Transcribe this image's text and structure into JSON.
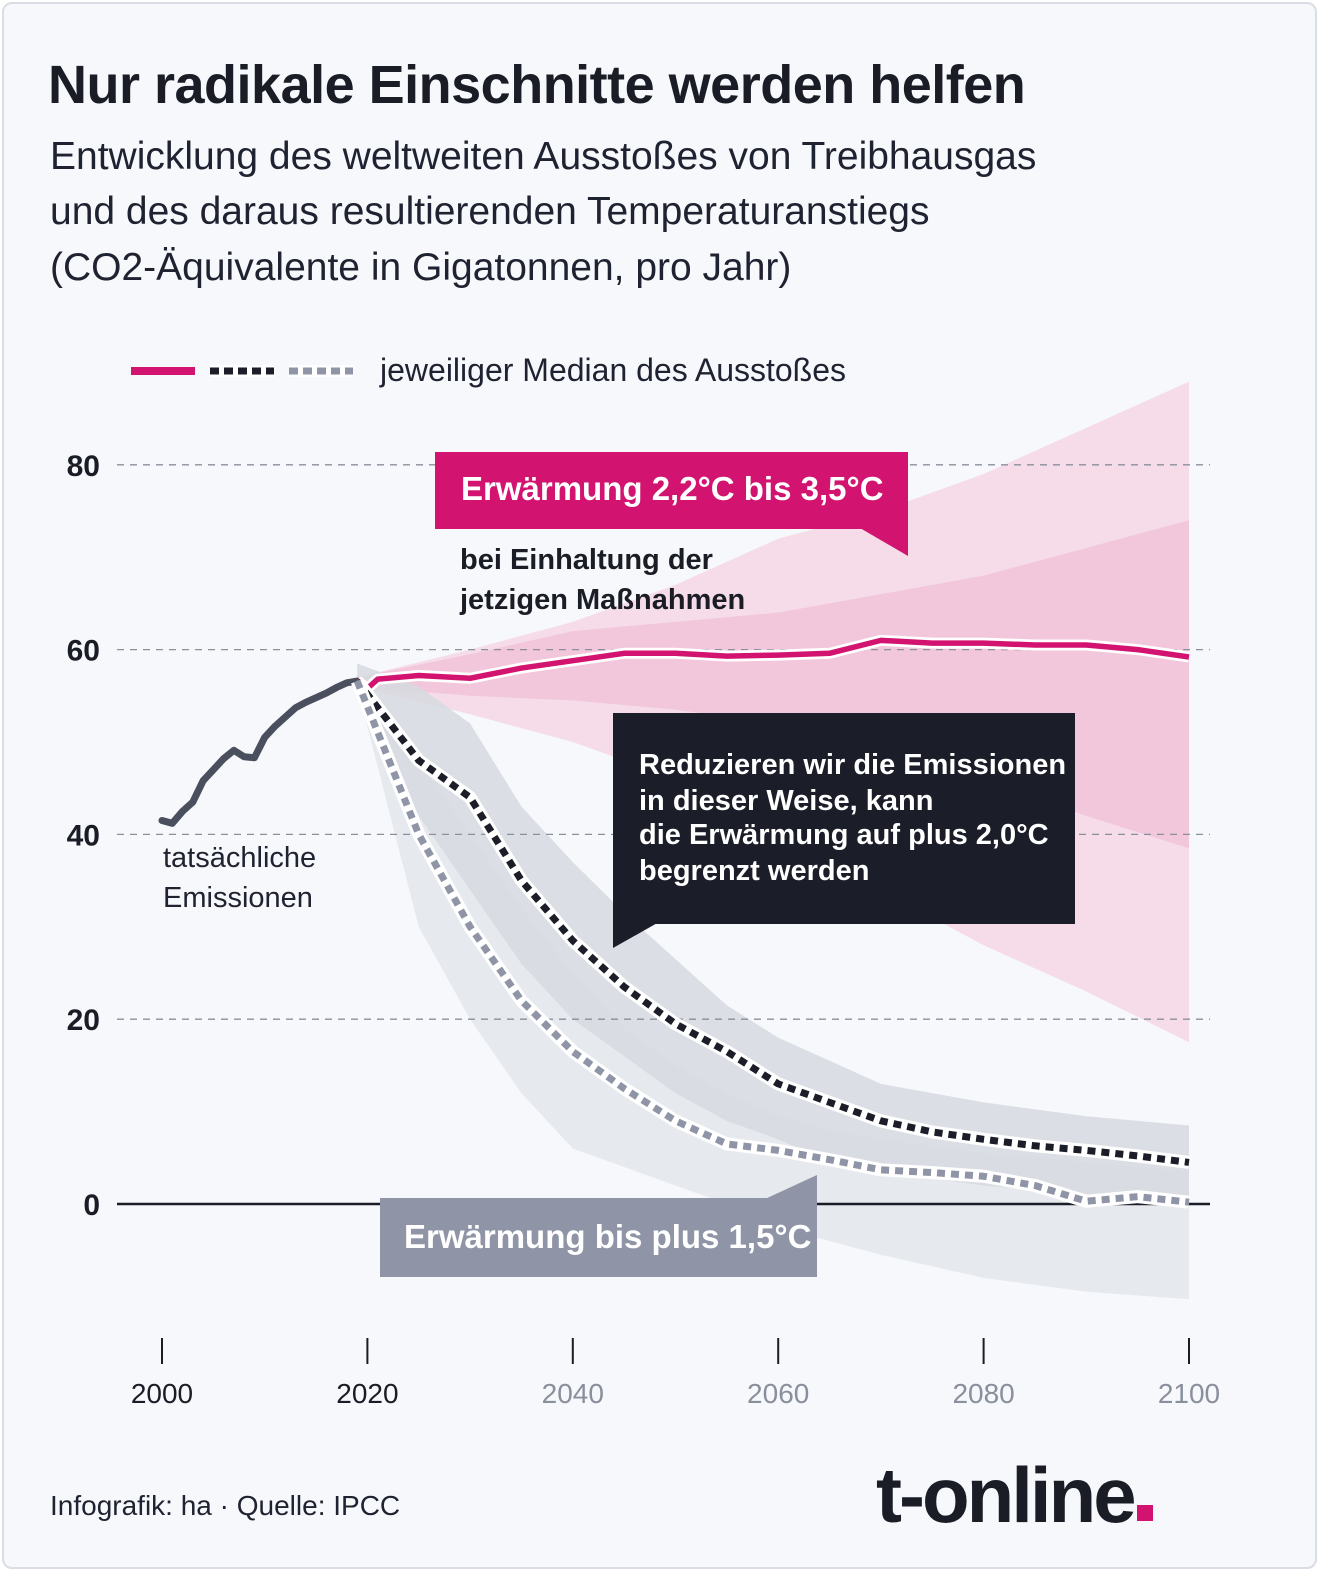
{
  "title": "Nur radikale Einschnitte werden helfen",
  "subtitle_lines": [
    "Entwicklung des weltweiten Ausstoßes von Treibhausgas",
    "und des daraus resultierenden Temperaturanstiegs",
    "(CO2-Äquivalente in Gigatonnen, pro Jahr)"
  ],
  "legend": {
    "text": "jeweiliger Median des Ausstoßes",
    "swatches": [
      "solid-magenta",
      "dotted-black",
      "dotted-grey"
    ]
  },
  "annotations": {
    "pink_box": "Erwärmung 2,2°C bis 3,5°C",
    "pink_note": [
      "bei Einhaltung der",
      "jetzigen Maßnahmen"
    ],
    "dark_box": [
      "Reduzieren wir die Emissionen",
      "in dieser Weise, kann",
      "die Erwärmung auf plus 2,0°C",
      "begrenzt werden"
    ],
    "actual_label": [
      "tatsächliche",
      "Emissionen"
    ],
    "grey_box": "Erwärmung bis plus 1,5°C"
  },
  "footer": "Infografik: ha  ·  Quelle: IPCC",
  "logo": "t-online",
  "colors": {
    "magenta": "#d2136f",
    "dark": "#1b1e28",
    "grey_box": "#8f95a6",
    "actual_line": "#4a4f5e",
    "band_pink_light": "#f5dce8",
    "band_pink": "#f2c6db",
    "band_grey_light": "#e6e9ee",
    "band_grey": "#d6d9df",
    "dots_grey": "#8f95a6"
  },
  "chart_data": {
    "type": "line",
    "x_ticks": [
      2000,
      2020,
      2040,
      2060,
      2080,
      2100
    ],
    "x_ticks_projected": [
      2040,
      2060,
      2080,
      2100
    ],
    "y_ticks": [
      0,
      20,
      40,
      60,
      80
    ],
    "xlim": [
      1995,
      2100
    ],
    "ylim": [
      -10,
      85
    ],
    "grid": "dashed horizontal at 20, 40, 60, 80; solid zero line",
    "series": [
      {
        "style": "actual",
        "x": [
          2000,
          2001,
          2002,
          2003,
          2004,
          2005,
          2006,
          2007,
          2008,
          2009,
          2010,
          2011,
          2012,
          2013,
          2014,
          2015,
          2016,
          2017,
          2018,
          2019
        ],
        "y": [
          41.5,
          41.2,
          42.5,
          43.5,
          45.8,
          47.0,
          48.2,
          49.1,
          48.4,
          48.3,
          50.5,
          51.7,
          52.7,
          53.7,
          54.3,
          54.8,
          55.3,
          55.9,
          56.4,
          56.6
        ]
      },
      {
        "style": "current-policies",
        "x": [
          2019,
          2020,
          2021,
          2025,
          2030,
          2035,
          2040,
          2045,
          2050,
          2055,
          2060,
          2065,
          2070,
          2075,
          2080,
          2085,
          2090,
          2095,
          2100
        ],
        "y": [
          56.6,
          55.8,
          56.8,
          57.2,
          56.9,
          58.0,
          58.8,
          59.6,
          59.6,
          59.3,
          59.4,
          59.6,
          61.0,
          60.7,
          60.7,
          60.5,
          60.5,
          60.0,
          59.2
        ]
      },
      {
        "style": "2.0C",
        "x": [
          2019,
          2025,
          2030,
          2035,
          2040,
          2045,
          2050,
          2055,
          2060,
          2065,
          2070,
          2075,
          2080,
          2085,
          2090,
          2095,
          2100
        ],
        "y": [
          56.6,
          48.0,
          44.0,
          35.0,
          28.5,
          23.5,
          19.5,
          16.5,
          13.0,
          11.0,
          9.0,
          7.8,
          7.0,
          6.3,
          5.8,
          5.2,
          4.5
        ]
      },
      {
        "style": "1.5C",
        "x": [
          2019,
          2025,
          2030,
          2035,
          2040,
          2045,
          2050,
          2055,
          2060,
          2065,
          2070,
          2075,
          2080,
          2085,
          2090,
          2095,
          2100
        ],
        "y": [
          56.6,
          40.0,
          30.0,
          22.0,
          16.5,
          12.5,
          9.0,
          6.5,
          5.8,
          4.8,
          3.7,
          3.4,
          3.0,
          2.0,
          0.3,
          0.8,
          0.2
        ]
      }
    ],
    "bands": [
      {
        "style": "current-outer",
        "x": [
          2019,
          2030,
          2040,
          2050,
          2060,
          2070,
          2080,
          2090,
          2100
        ],
        "upper": [
          57.0,
          60.0,
          63.0,
          67.0,
          72.0,
          75.0,
          79.0,
          84.0,
          89.0
        ],
        "lower": [
          56.0,
          53.0,
          50.0,
          46.0,
          40.0,
          34.0,
          28.0,
          23.0,
          17.5
        ]
      },
      {
        "style": "current-inner",
        "x": [
          2019,
          2030,
          2040,
          2050,
          2060,
          2070,
          2080,
          2090,
          2100
        ],
        "upper": [
          57.0,
          59.5,
          62.0,
          63.0,
          64.0,
          66.0,
          68.0,
          71.0,
          74.0
        ],
        "lower": [
          56.0,
          55.0,
          54.5,
          53.5,
          52.0,
          49.5,
          46.0,
          42.0,
          38.5
        ]
      },
      {
        "style": "2.0C",
        "x": [
          2019,
          2025,
          2030,
          2035,
          2040,
          2045,
          2050,
          2055,
          2060,
          2065,
          2070,
          2080,
          2090,
          2100
        ],
        "upper": [
          58.5,
          56.0,
          52.0,
          43.0,
          37.0,
          31.5,
          26.5,
          21.5,
          18.0,
          15.5,
          13.0,
          11.0,
          9.5,
          8.5
        ],
        "lower": [
          56.0,
          42.0,
          34.0,
          26.0,
          20.0,
          16.0,
          12.0,
          9.0,
          7.0,
          4.5,
          3.5,
          2.0,
          1.0,
          -0.5
        ]
      },
      {
        "style": "1.5C",
        "x": [
          2019,
          2025,
          2030,
          2035,
          2040,
          2045,
          2050,
          2055,
          2060,
          2065,
          2070,
          2080,
          2090,
          2100
        ],
        "upper": [
          57.0,
          48.0,
          40.0,
          32.0,
          25.0,
          19.0,
          15.0,
          12.0,
          9.5,
          8.0,
          7.0,
          5.5,
          4.5,
          3.5
        ],
        "lower": [
          56.0,
          30.0,
          20.0,
          12.0,
          6.0,
          4.0,
          2.0,
          0.0,
          -2.5,
          -4.0,
          -5.5,
          -8.0,
          -9.5,
          -10.3
        ]
      }
    ]
  }
}
